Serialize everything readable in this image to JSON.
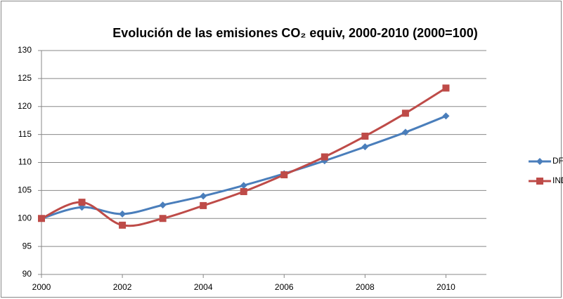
{
  "chart_data": {
    "type": "line",
    "title": "Evolución de las emisiones CO₂ equiv, 2000-2010 (2000=100)",
    "x": [
      2000,
      2001,
      2002,
      2003,
      2004,
      2005,
      2006,
      2007,
      2008,
      2009,
      2010
    ],
    "series": [
      {
        "name": "DF",
        "color": "#4a7ebb",
        "marker": "diamond",
        "values": [
          100,
          102.0,
          100.8,
          102.4,
          104.0,
          105.9,
          108.0,
          110.3,
          112.8,
          115.4,
          118.3
        ]
      },
      {
        "name": "IND",
        "color": "#be4b48",
        "marker": "square",
        "values": [
          100,
          102.9,
          98.8,
          100.0,
          102.3,
          104.8,
          107.8,
          111.0,
          114.7,
          118.8,
          123.3
        ]
      }
    ],
    "smooth": true,
    "xlim": [
      2000,
      2011
    ],
    "xticks": [
      2000,
      2002,
      2004,
      2006,
      2008,
      2010
    ],
    "ylim": [
      90,
      130
    ],
    "yticks": [
      90,
      95,
      100,
      105,
      110,
      115,
      120,
      125,
      130
    ],
    "grid": true,
    "legend": "right"
  }
}
